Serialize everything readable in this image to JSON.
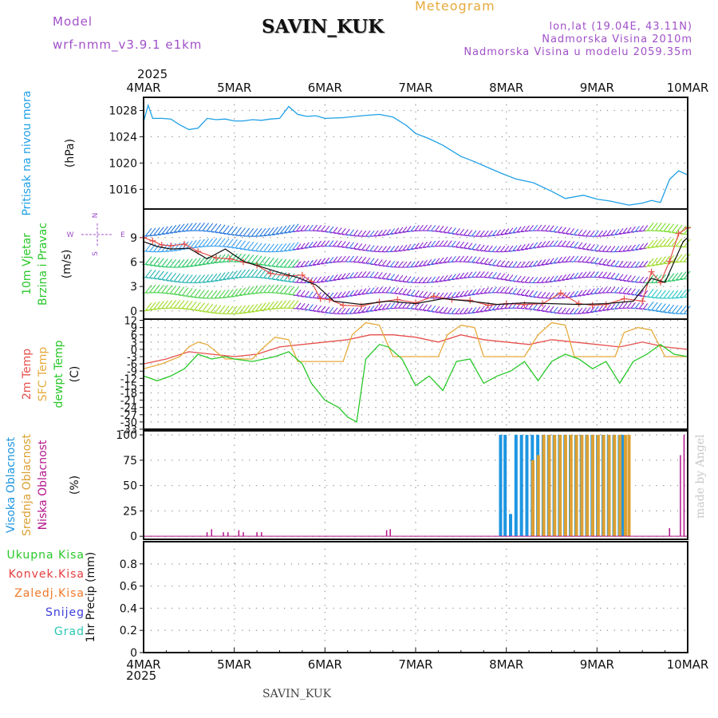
{
  "header": {
    "model_label": "Model",
    "model_value": "wrf-nmm_v3.9.1 e1km",
    "station": "SAVIN_KUK",
    "product": "Meteogram",
    "lonlat": "lon,lat (19.04E, 43.11N)",
    "elevation": "Nadmorska Visina 2010m",
    "model_elevation": "Nadmorska Visina u modelu 2059.35m",
    "credit": "made by Angel",
    "footer_station": "SAVIN_KUK"
  },
  "time_axis": {
    "year": "2025",
    "labels": [
      "4MAR",
      "5MAR",
      "6MAR",
      "7MAR",
      "8MAR",
      "9MAR",
      "10MAR"
    ],
    "range_days": [
      0,
      6
    ]
  },
  "colors": {
    "pressure": "#1ea0e6",
    "temp2m": "#e6504b",
    "sfc_temp": "#e6aa3c",
    "dewpoint": "#28c828",
    "high_cloud": "#1e96e1",
    "mid_cloud": "#dca032",
    "low_cloud": "#b4148c",
    "precip_total": "#28c828",
    "precip_conv": "#e63c3c",
    "precip_frz": "#f07828",
    "precip_snow": "#3c3cdc",
    "precip_grad": "#28c8b4",
    "model_text": "#a050c8",
    "credit_text": "#c8c8c8"
  },
  "chart_data": [
    {
      "type": "line",
      "panel": "pressure",
      "ylabel": [
        "Pritisak na nivou mora",
        "(hPa)"
      ],
      "ylim": [
        1013,
        1030
      ],
      "yticks": [
        1016,
        1020,
        1024,
        1028
      ],
      "grid": true,
      "series": [
        {
          "color_key": "pressure",
          "x": [
            0,
            0.05,
            0.1,
            0.2,
            0.3,
            0.4,
            0.5,
            0.6,
            0.7,
            0.8,
            0.9,
            1.0,
            1.1,
            1.2,
            1.3,
            1.4,
            1.5,
            1.6,
            1.7,
            1.8,
            1.9,
            2.0,
            2.2,
            2.4,
            2.6,
            2.75,
            2.9,
            3.0,
            3.15,
            3.3,
            3.5,
            3.65,
            3.8,
            3.95,
            4.1,
            4.3,
            4.5,
            4.65,
            4.85,
            5.0,
            5.15,
            5.35,
            5.5,
            5.6,
            5.7,
            5.8,
            5.9,
            6.0
          ],
          "y": [
            1026.3,
            1028.8,
            1026.8,
            1026.8,
            1026.7,
            1025.8,
            1025.1,
            1025.3,
            1026.8,
            1026.6,
            1026.7,
            1026.4,
            1026.4,
            1026.6,
            1026.5,
            1026.7,
            1026.8,
            1028.6,
            1027.4,
            1027.1,
            1027.2,
            1026.8,
            1026.9,
            1027.2,
            1027.4,
            1027.0,
            1025.7,
            1024.5,
            1023.7,
            1022.7,
            1021.0,
            1020.2,
            1019.3,
            1018.4,
            1017.6,
            1017.0,
            1015.7,
            1014.6,
            1015.1,
            1014.5,
            1014.2,
            1013.6,
            1013.9,
            1014.3,
            1014.0,
            1017.5,
            1018.8,
            1018.2
          ]
        }
      ]
    },
    {
      "type": "wind",
      "panel": "wind",
      "ylabel": [
        "10m Vjetar",
        "Brzina i Pravac",
        "(m/s)"
      ],
      "compass": [
        "N",
        "W",
        "E",
        "S"
      ],
      "ylim": [
        -1,
        12.5
      ],
      "yticks": [
        0,
        3,
        6,
        9
      ],
      "grid": true,
      "levels": [
        0,
        1.9,
        3.8,
        5.7,
        7.6,
        9.5
      ],
      "speed_series": [
        {
          "color_key": "temp2m",
          "name": "",
          "x": [
            0,
            0.1,
            0.2,
            0.3,
            0.45,
            0.6,
            0.8,
            0.95,
            1.1,
            1.25,
            1.4,
            1.6,
            1.75,
            1.85,
            1.95,
            2.05,
            2.2,
            2.4,
            2.6,
            2.8,
            3.0,
            3.2,
            3.4,
            3.6,
            3.8,
            4.0,
            4.2,
            4.4,
            4.6,
            4.8,
            4.95,
            5.1,
            5.3,
            5.5,
            5.6,
            5.7,
            5.8,
            5.9,
            6.0
          ],
          "y": [
            9.0,
            8.6,
            8.1,
            8.0,
            8.2,
            7.3,
            6.5,
            6.4,
            6.0,
            5.6,
            4.6,
            4.3,
            4.4,
            3.6,
            1.5,
            1.4,
            0.7,
            0.6,
            1.1,
            1.4,
            1.0,
            1.8,
            1.4,
            1.3,
            0.7,
            0.9,
            0.8,
            0.9,
            2.2,
            0.9,
            0.7,
            0.8,
            1.5,
            1.2,
            4.8,
            3.5,
            6.1,
            9.5,
            10.2
          ]
        },
        {
          "color_key": "black",
          "name": "",
          "x": [
            0,
            0.15,
            0.3,
            0.5,
            0.7,
            0.9,
            1.1,
            1.3,
            1.5,
            1.7,
            1.9,
            2.1,
            2.4,
            2.7,
            3.0,
            3.3,
            3.6,
            3.9,
            4.2,
            4.5,
            4.8,
            5.1,
            5.4,
            5.6,
            5.75,
            5.85,
            5.95,
            6.0
          ],
          "y": [
            8.5,
            7.9,
            7.6,
            7.7,
            6.4,
            7.6,
            6.1,
            5.4,
            4.7,
            4.1,
            3.2,
            1.2,
            0.8,
            1.2,
            0.9,
            1.5,
            1.2,
            0.8,
            1.0,
            0.9,
            0.8,
            0.9,
            1.2,
            4.0,
            3.5,
            6.0,
            8.5,
            9.0
          ]
        }
      ]
    },
    {
      "type": "line",
      "panel": "temperature",
      "ylabel": [
        "2m Temp",
        "SFC Temp",
        "dewpt Temp",
        "(C)"
      ],
      "ylim": [
        -33,
        12.5
      ],
      "yticks": [
        12,
        9,
        6,
        3,
        0,
        -3,
        -6,
        -9,
        -12,
        -15,
        -18,
        -21,
        -24,
        -27,
        -30,
        -33
      ],
      "grid": true,
      "series": [
        {
          "color_key": "temp2m",
          "x": [
            0,
            0.25,
            0.5,
            0.75,
            1.0,
            1.25,
            1.5,
            1.75,
            2.0,
            2.25,
            2.5,
            2.75,
            3.0,
            3.25,
            3.5,
            3.75,
            4.0,
            4.25,
            4.5,
            4.75,
            5.0,
            5.25,
            5.5,
            5.75,
            6.0
          ],
          "y": [
            -6,
            -4,
            -1,
            -2,
            -3,
            -2,
            1,
            2,
            3,
            4,
            6,
            6,
            5,
            3,
            6,
            4,
            3,
            2,
            4,
            3,
            2,
            1,
            3,
            1,
            0
          ]
        },
        {
          "color_key": "sfc_temp",
          "x": [
            0,
            0.2,
            0.4,
            0.5,
            0.6,
            0.7,
            0.9,
            1.2,
            1.3,
            1.45,
            1.6,
            1.7,
            2.2,
            2.3,
            2.45,
            2.6,
            2.75,
            3.25,
            3.35,
            3.5,
            3.65,
            3.75,
            4.2,
            4.35,
            4.5,
            4.65,
            4.75,
            5.2,
            5.3,
            5.45,
            5.6,
            5.75,
            6.0
          ],
          "y": [
            -8,
            -6,
            -3,
            1,
            3,
            2,
            -4,
            -4,
            0,
            5,
            4,
            -5,
            -5,
            6,
            11,
            10,
            -3,
            -3,
            6,
            10,
            9,
            -3,
            -3,
            6,
            11,
            10,
            -3,
            -3,
            7,
            9,
            8,
            -3,
            -3
          ]
        },
        {
          "color_key": "dewpoint",
          "x": [
            0,
            0.15,
            0.3,
            0.45,
            0.6,
            0.75,
            0.9,
            1.0,
            1.2,
            1.45,
            1.6,
            1.75,
            1.85,
            2.0,
            2.15,
            2.25,
            2.35,
            2.45,
            2.6,
            2.7,
            2.85,
            3.0,
            3.15,
            3.3,
            3.45,
            3.6,
            3.75,
            3.9,
            4.05,
            4.2,
            4.35,
            4.5,
            4.65,
            4.8,
            4.95,
            5.1,
            5.25,
            5.4,
            5.55,
            5.7,
            5.85,
            6.0
          ],
          "y": [
            -11,
            -13,
            -11,
            -8,
            -2,
            -4,
            -3,
            -4,
            -5,
            -3,
            -1,
            -6,
            -14,
            -21,
            -24,
            -28,
            -30,
            -4,
            2,
            1,
            -4,
            -15,
            -11,
            -17,
            -5,
            -4,
            -14,
            -11,
            -9,
            -5,
            -13,
            -5,
            -2,
            -4,
            -8,
            -5,
            -14,
            -5,
            -2,
            2,
            -2,
            -3
          ]
        }
      ]
    },
    {
      "type": "bar",
      "panel": "cloud",
      "ylabel": [
        "Visoka Oblacnost",
        "Srednja Oblacnost",
        "Niska Oblacnost",
        "(%)"
      ],
      "ylim": [
        -3,
        104
      ],
      "yticks": [
        0,
        25,
        50,
        75,
        100
      ],
      "grid": true,
      "series": [
        {
          "color_key": "high_cloud",
          "x": [
            3.95,
            4.0,
            4.06,
            4.12,
            4.18,
            4.24,
            4.3,
            4.36,
            4.42,
            4.48,
            4.54,
            4.6,
            4.66,
            4.72,
            4.78,
            4.84,
            4.9,
            4.96,
            5.02,
            5.08,
            5.14,
            5.2,
            5.26,
            5.3
          ],
          "values": [
            100,
            100,
            22,
            100,
            100,
            100,
            100,
            100,
            100,
            100,
            100,
            100,
            100,
            100,
            100,
            100,
            100,
            100,
            100,
            100,
            100,
            100,
            100,
            100
          ]
        },
        {
          "color_key": "mid_cloud",
          "x": [
            4.28,
            4.34,
            4.4,
            4.46,
            4.52,
            4.58,
            4.64,
            4.7,
            4.76,
            4.82,
            4.88,
            4.94,
            5.0,
            5.06,
            5.12,
            5.18,
            5.24,
            5.3,
            5.34
          ],
          "values": [
            75,
            80,
            100,
            100,
            100,
            100,
            100,
            100,
            100,
            100,
            100,
            100,
            100,
            100,
            100,
            100,
            100,
            100,
            100
          ]
        },
        {
          "color_key": "low_cloud",
          "x": [
            0.7,
            0.75,
            0.88,
            0.93,
            1.05,
            1.1,
            1.25,
            1.3,
            2.68,
            2.72,
            5.8,
            5.92,
            5.96
          ],
          "values": [
            4,
            7,
            4,
            4,
            6,
            4,
            4,
            4,
            6,
            7,
            8,
            80,
            100
          ]
        }
      ]
    },
    {
      "type": "bar",
      "panel": "precip",
      "ylabel": [
        "1hr Precip (mm)"
      ],
      "ylim": [
        0,
        1.0
      ],
      "yticks": [
        0,
        0.2,
        0.4,
        0.6,
        0.8
      ],
      "grid": true,
      "legend": [
        "Ukupna Kisa",
        "Konvek.Kisa",
        "Zaledj.Kisa",
        "Snijeg",
        "Grad"
      ],
      "series": []
    }
  ]
}
